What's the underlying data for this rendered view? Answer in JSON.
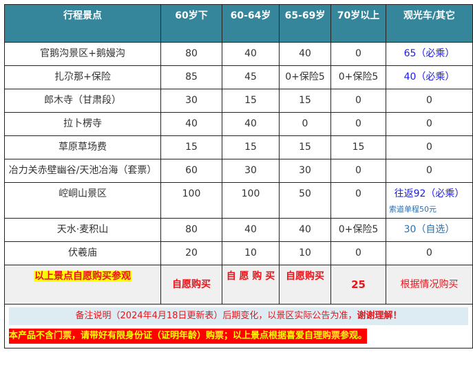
{
  "headers": [
    "行程景点",
    "60岁下",
    "60-64岁",
    "65-69岁",
    "70岁以上",
    "观光车/其它"
  ],
  "rows": [
    {
      "name": "官鹅沟景区+鹅嫚沟",
      "c1": "80",
      "c2": "40",
      "c3": "40",
      "c4": "0",
      "c5": "65（必乘）"
    },
    {
      "name": "扎尕那+保险",
      "c1": "85",
      "c2": "45",
      "c3": "0+保险5",
      "c4": "0+保险5",
      "c5": "40（必乘）"
    },
    {
      "name": "郎木寺（甘肃段）",
      "c1": "30",
      "c2": "15",
      "c3": "15",
      "c4": "0",
      "c5": "0"
    },
    {
      "name": "拉卜楞寺",
      "c1": "40",
      "c2": "40",
      "c3": "0",
      "c4": "0",
      "c5": "0"
    },
    {
      "name": "草原草场费",
      "c1": "15",
      "c2": "15",
      "c3": "15",
      "c4": "15",
      "c5": "0"
    },
    {
      "name": "冶力关赤壁幽谷/天池冶海（套票）",
      "c1": "60",
      "c2": "30",
      "c3": "30",
      "c4": "0",
      "c5": "0"
    },
    {
      "name": "崆峒山景区",
      "c1": "100",
      "c2": "100",
      "c3": "50",
      "c4": "0",
      "c5": "往返92（必乘）",
      "c5_note": "索道单程50元"
    },
    {
      "name": "天水·麦积山",
      "c1": "80",
      "c2": "40",
      "c3": "40",
      "c4": "0+保险5",
      "c5": "30（自选）"
    },
    {
      "name": "伏羲庙",
      "c1": "20",
      "c2": "10",
      "c3": "10",
      "c4": "0",
      "c5": "0"
    }
  ],
  "summary": {
    "name": "以上景点自愿购买参观",
    "c1": "自愿购买",
    "c2": "自 愿 购 买",
    "c3": "自愿购买",
    "c4": "25",
    "c5": "根据情况购买"
  },
  "notes": {
    "remark": "备注说明（2024年4月18日更新表）后期变化，以景区实际公告为准，",
    "remark_bold": "谢谢理解！",
    "warning": "本产品不含门票，请带好有限身份证（证明年龄）购票；以上景点根据喜爱自理购票参观。"
  },
  "colors": {
    "header": "#35859b",
    "must_ride": "#1a1aee",
    "highlight": "#ffff00",
    "alert": "#e8141a"
  }
}
